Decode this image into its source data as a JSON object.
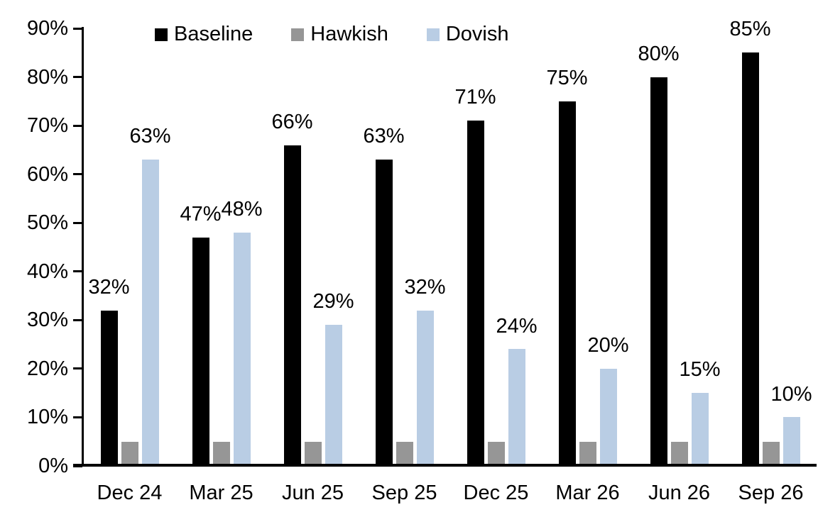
{
  "chart_data": {
    "type": "bar",
    "title": "",
    "categories": [
      "Dec 24",
      "Mar 25",
      "Jun 25",
      "Sep 25",
      "Dec 25",
      "Mar 26",
      "Jun 26",
      "Sep 26"
    ],
    "series": [
      {
        "name": "Baseline",
        "color": "#000000",
        "values": [
          32,
          47,
          66,
          63,
          71,
          75,
          80,
          85
        ],
        "show_labels": true
      },
      {
        "name": "Hawkish",
        "color": "#969696",
        "values": [
          5,
          5,
          5,
          5,
          5,
          5,
          5,
          5
        ],
        "show_labels": false
      },
      {
        "name": "Dovish",
        "color": "#B9CDE4",
        "values": [
          63,
          48,
          29,
          32,
          24,
          20,
          15,
          10
        ],
        "show_labels": true
      }
    ],
    "data_labels": {
      "Baseline": [
        "32%",
        "47%",
        "66%",
        "63%",
        "71%",
        "75%",
        "80%",
        "85%"
      ],
      "Dovish": [
        "63%",
        "48%",
        "29%",
        "32%",
        "24%",
        "20%",
        "15%",
        "10%"
      ]
    },
    "xlabel": "",
    "ylabel": "",
    "ylim": [
      0,
      90
    ],
    "ytick_step": 10,
    "ytick_labels": [
      "0%",
      "10%",
      "20%",
      "30%",
      "40%",
      "50%",
      "60%",
      "70%",
      "80%",
      "90%"
    ],
    "legend_position": "top",
    "legend_entries": [
      "Baseline",
      "Hawkish",
      "Dovish"
    ],
    "grid": false,
    "background_color": "#ffffff",
    "axis_color": "#000000"
  }
}
